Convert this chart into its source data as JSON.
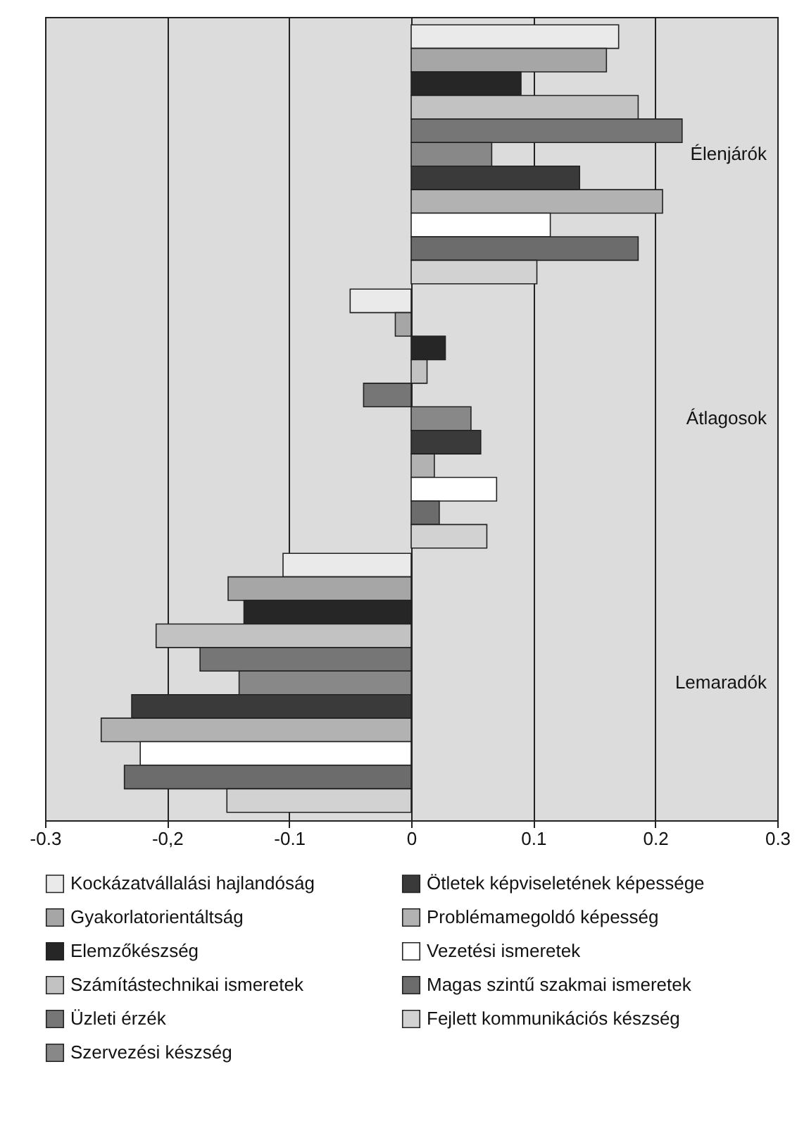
{
  "chart_data": {
    "type": "bar",
    "orientation": "horizontal",
    "categories": [
      "Élenjárók",
      "Átlagosok",
      "Lemaradók"
    ],
    "series": [
      {
        "name": "Kockázatvállalási hajlandóság",
        "color": "#eaeaea",
        "values": [
          0.17,
          -0.05,
          -0.105
        ]
      },
      {
        "name": "Gyakorlatorientáltság",
        "color": "#a6a6a6",
        "values": [
          0.16,
          -0.013,
          -0.15
        ]
      },
      {
        "name": "Elemzőkészség",
        "color": "#262626",
        "values": [
          0.09,
          0.028,
          -0.137
        ]
      },
      {
        "name": "Számítástechnikai ismeretek",
        "color": "#c2c2c2",
        "values": [
          0.186,
          0.013,
          -0.209
        ]
      },
      {
        "name": "Üzleti érzék",
        "color": "#767676",
        "values": [
          0.222,
          -0.039,
          -0.173
        ]
      },
      {
        "name": "Szervezési készség",
        "color": "#888888",
        "values": [
          0.066,
          0.049,
          -0.141
        ]
      },
      {
        "name": "Ötletek képviseletének képessége",
        "color": "#3a3a3a",
        "values": [
          0.138,
          0.057,
          -0.229
        ]
      },
      {
        "name": "Problémamegoldó képesség",
        "color": "#b2b2b2",
        "values": [
          0.206,
          0.019,
          -0.254
        ]
      },
      {
        "name": "Vezetési ismeretek",
        "color": "#ffffff",
        "values": [
          0.114,
          0.07,
          -0.222
        ]
      },
      {
        "name": "Magas szintű szakmai ismeretek",
        "color": "#6c6c6c",
        "values": [
          0.186,
          0.023,
          -0.235
        ]
      },
      {
        "name": "Fejlett kommunikációs készség",
        "color": "#d2d2d2",
        "values": [
          0.103,
          0.062,
          -0.151
        ]
      }
    ],
    "xlim": [
      -0.3,
      0.3
    ],
    "xticks": [
      -0.3,
      {
        "value": -0.2,
        "label": "-0,2"
      },
      -0.1,
      0,
      0.1,
      0.2,
      0.3
    ],
    "grid": "x",
    "legend": "bottom"
  }
}
